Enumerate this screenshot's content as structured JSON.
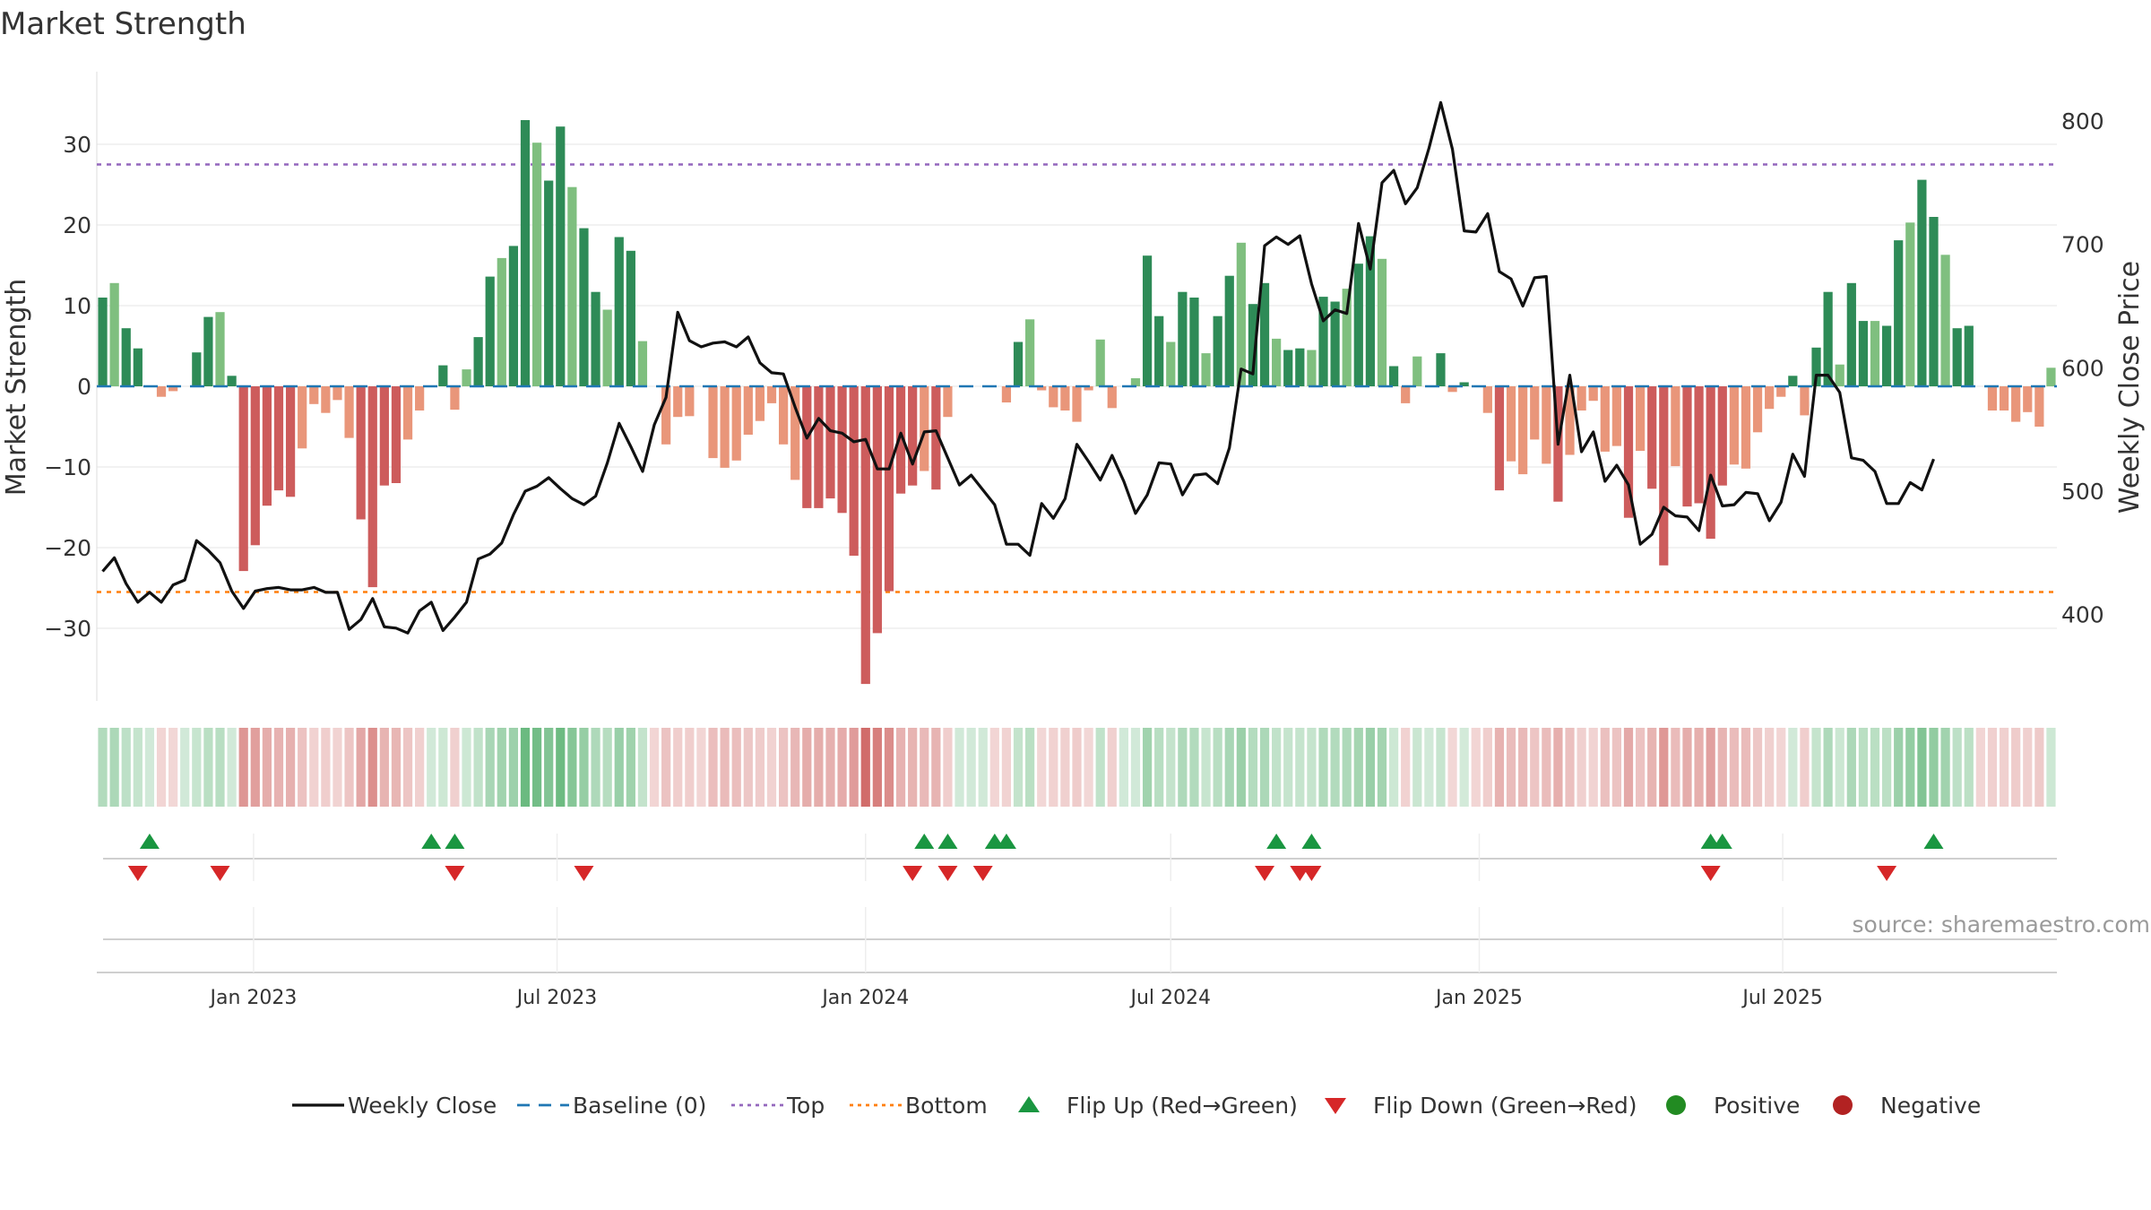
{
  "title": "Market Strength",
  "source": "source: sharemaestro.com",
  "colors": {
    "pos_dark": "#2e8b57",
    "pos_light": "#7fbf7f",
    "neg_dark": "#cd5c5c",
    "neg_light": "#e9967a",
    "line": "#111111",
    "baseline": "#1f77b4",
    "top": "#9467bd",
    "bottom": "#ff7f0e",
    "flip_up": "#1a9641",
    "flip_down": "#d62728",
    "positive": "#228b22",
    "negative": "#b22222"
  },
  "chart_data": {
    "type": "bar",
    "title": "Market Strength",
    "ylabel": "Market Strength",
    "y2label": "Weekly Close Price",
    "ylim": [
      -39,
      39
    ],
    "y2lim": [
      330,
      840
    ],
    "yticks": [
      "30",
      "20",
      "10",
      "0",
      "−10",
      "−20",
      "−30"
    ],
    "y2ticks": [
      "800",
      "700",
      "600",
      "500",
      "400"
    ],
    "x_start": "2022-10-03",
    "x_tick_labels": [
      "Jan 2023",
      "Jul 2023",
      "Jan 2024",
      "Jul 2024",
      "Jan 2025",
      "Jul 2025"
    ],
    "x_tick_dates": [
      "2023-01-01",
      "2023-07-01",
      "2024-01-01",
      "2024-07-01",
      "2025-01-01",
      "2025-07-01"
    ],
    "top_threshold": 27.5,
    "bottom_threshold": -25.5,
    "strength": [
      11,
      12.8,
      7.2,
      4.7,
      0,
      -1.3,
      -0.6,
      0,
      4.2,
      8.6,
      9.2,
      1.3,
      -22.9,
      -19.7,
      -14.8,
      -12.9,
      -13.7,
      -7.7,
      -2.2,
      -3.3,
      -1.7,
      -6.4,
      -16.5,
      -24.9,
      -12.3,
      -12,
      -6.6,
      -3,
      0,
      2.6,
      -2.9,
      2.1,
      6.1,
      13.6,
      15.9,
      17.4,
      33,
      30.2,
      25.5,
      32.2,
      24.7,
      19.6,
      11.7,
      9.5,
      18.5,
      16.8,
      5.6,
      0,
      -7.2,
      -3.8,
      -3.7,
      0,
      -8.9,
      -10.1,
      -9.2,
      -6,
      -4.3,
      -2.1,
      -7.2,
      -11.6,
      -15.1,
      -15.1,
      -13.9,
      -15.7,
      -21,
      -36.9,
      -30.6,
      -25.4,
      -13.3,
      -12.3,
      -10.5,
      -12.8,
      -3.8,
      0,
      0,
      0,
      0,
      -2,
      5.5,
      8.3,
      -0.5,
      -2.6,
      -3,
      -4.4,
      -0.5,
      5.8,
      -2.7,
      0,
      1,
      16.2,
      8.7,
      5.5,
      11.7,
      11,
      4.1,
      8.7,
      13.7,
      17.8,
      10.2,
      12.8,
      5.9,
      4.5,
      4.7,
      4.5,
      11.1,
      10.5,
      12.1,
      15.2,
      18.6,
      15.8,
      2.5,
      -2.1,
      3.7,
      0,
      4.1,
      -0.7,
      0.5,
      0,
      -3.3,
      -12.9,
      -9.3,
      -10.9,
      -6.6,
      -9.6,
      -14.3,
      -8.5,
      -3,
      -1.8,
      -8.1,
      -7.4,
      -16.3,
      -8,
      -12.7,
      -22.2,
      -9.9,
      -14.9,
      -14.5,
      -18.9,
      -12.3,
      -9.7,
      -10.2,
      -5.7,
      -2.8,
      -1.3,
      1.3,
      -3.6,
      4.8,
      11.7,
      2.7,
      12.8,
      8.1,
      8.1,
      7.5,
      18.1,
      20.3,
      25.6,
      21,
      16.3,
      7.2,
      7.5,
      0,
      -3,
      -3,
      -4.4,
      -3.2,
      -5,
      2.3
    ],
    "close": [
      435,
      446,
      425,
      410,
      418,
      410,
      424,
      428,
      460,
      452,
      442,
      419,
      405,
      419,
      421,
      422,
      420,
      420,
      422,
      418,
      418,
      388,
      396,
      413,
      390,
      389,
      385,
      403,
      410,
      387,
      398,
      410,
      445,
      449,
      458,
      481,
      500,
      504,
      511,
      502,
      494,
      489,
      496,
      523,
      555,
      536,
      516,
      554,
      576,
      645,
      622,
      617,
      620,
      621,
      617,
      625,
      604,
      596,
      595,
      568,
      543,
      559,
      549,
      547,
      540,
      542,
      518,
      518,
      547,
      522,
      548,
      549,
      527,
      505,
      513,
      501,
      489,
      457,
      457,
      448,
      490,
      478,
      494,
      538,
      524,
      509,
      529,
      508,
      482,
      497,
      523,
      522,
      497,
      513,
      514,
      506,
      535,
      599,
      595,
      699,
      706,
      700,
      707,
      668,
      638,
      647,
      644,
      717,
      680,
      750,
      760,
      733,
      746,
      778,
      815,
      777,
      711,
      710,
      725,
      678,
      672,
      650,
      673,
      674,
      538,
      594,
      532,
      548,
      508,
      521,
      505,
      457,
      465,
      487,
      480,
      479,
      468,
      513,
      488,
      489,
      499,
      498,
      476,
      491,
      530,
      512,
      594,
      594,
      580,
      527,
      525,
      516,
      490,
      490,
      507,
      501,
      526
    ]
  },
  "heat_strip": [
    11,
    12.8,
    7.2,
    4.7,
    1,
    -1.3,
    -0.6,
    1,
    4.2,
    8.6,
    9.2,
    1.3,
    -22.9,
    -19.7,
    -14.8,
    -12.9,
    -13.7,
    -7.7,
    -2.2,
    -3.3,
    -1.7,
    -6.4,
    -16.5,
    -24.9,
    -12.3,
    -12,
    -6.6,
    -3,
    1,
    2.6,
    -2.9,
    2.1,
    6.1,
    13.6,
    15.9,
    17.4,
    33,
    30.2,
    25.5,
    32.2,
    24.7,
    19.6,
    11.7,
    9.5,
    18.5,
    16.8,
    5.6,
    -1,
    -7.2,
    -3.8,
    -3.7,
    -1,
    -8.9,
    -10.1,
    -9.2,
    -6,
    -4.3,
    -2.1,
    -7.2,
    -11.6,
    -15.1,
    -15.1,
    -13.9,
    -15.7,
    -21,
    -36.9,
    -30.6,
    -25.4,
    -13.3,
    -12.3,
    -10.5,
    -12.8,
    -3.8,
    1,
    1,
    1,
    -1,
    -2,
    5.5,
    8.3,
    -0.5,
    -2.6,
    -3,
    -4.4,
    -0.5,
    5.8,
    -2.7,
    1,
    1,
    16.2,
    8.7,
    5.5,
    11.7,
    11,
    4.1,
    8.7,
    13.7,
    17.8,
    10.2,
    12.8,
    5.9,
    4.5,
    4.7,
    4.5,
    11.1,
    10.5,
    12.1,
    15.2,
    18.6,
    15.8,
    2.5,
    -2.1,
    3.7,
    1,
    4.1,
    -0.7,
    0.5,
    -1,
    -3.3,
    -12.9,
    -9.3,
    -10.9,
    -6.6,
    -9.6,
    -14.3,
    -8.5,
    -3,
    -1.8,
    -8.1,
    -7.4,
    -16.3,
    -8,
    -12.7,
    -22.2,
    -9.9,
    -14.9,
    -14.5,
    -18.9,
    -12.3,
    -9.7,
    -10.2,
    -5.7,
    -2.8,
    -1.3,
    1.3,
    -3.6,
    4.8,
    11.7,
    2.7,
    12.8,
    8.1,
    8.1,
    7.5,
    18.1,
    20.3,
    25.6,
    21,
    16.3,
    7.2,
    7.5,
    -1,
    -3,
    -3,
    -4.4,
    -3.2,
    -5,
    2.3
  ],
  "flips_up": [
    "2022-10-31",
    "2023-04-17",
    "2023-05-01",
    "2024-02-05",
    "2024-02-19",
    "2024-03-18",
    "2024-03-25",
    "2024-09-02",
    "2024-09-23",
    "2025-05-19",
    "2025-05-26",
    "2025-09-29"
  ],
  "flips_down": [
    "2022-10-24",
    "2022-12-12",
    "2023-05-01",
    "2023-07-17",
    "2024-01-29",
    "2024-02-19",
    "2024-03-11",
    "2024-08-26",
    "2024-09-16",
    "2024-09-23",
    "2025-05-19",
    "2025-09-01"
  ],
  "legend": [
    {
      "label": "Weekly Close",
      "kind": "line"
    },
    {
      "label": "Baseline (0)",
      "kind": "dash"
    },
    {
      "label": "Top",
      "kind": "dot-top"
    },
    {
      "label": "Bottom",
      "kind": "dot-bottom"
    },
    {
      "label": "Flip Up (Red→Green)",
      "kind": "tri-up"
    },
    {
      "label": "Flip Down (Green→Red)",
      "kind": "tri-down"
    },
    {
      "label": "Positive",
      "kind": "circle-pos"
    },
    {
      "label": "Negative",
      "kind": "circle-neg"
    }
  ]
}
